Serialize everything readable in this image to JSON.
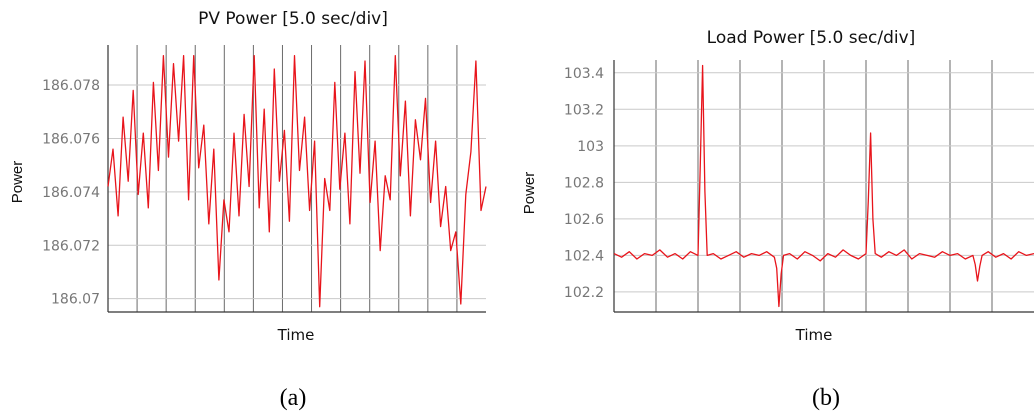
{
  "chart_data": [
    {
      "panel": "a",
      "type": "line",
      "title": "PV Power [5.0 sec/div]",
      "xlabel": "Time",
      "ylabel": "Power",
      "yticks": [
        "186.078",
        "186.076",
        "186.074",
        "186.072",
        "186.07"
      ],
      "ylim": [
        186.0695,
        186.0795
      ],
      "grid": true,
      "x": [
        0,
        0.8,
        1.6,
        2.4,
        3.2,
        4.0,
        4.8,
        5.6,
        6.4,
        7.2,
        8.0,
        8.8,
        9.6,
        10.4,
        11.2,
        12.0,
        12.8,
        13.6,
        14.4,
        15.2,
        16.0,
        16.8,
        17.6,
        18.4,
        19.2,
        20.0,
        20.8,
        21.6,
        22.4,
        23.2,
        24.0,
        24.8,
        25.6,
        26.4,
        27.2,
        28.0,
        28.8,
        29.6,
        30.4,
        31.2,
        32.0,
        32.8,
        33.6,
        34.4,
        35.2,
        36.0,
        36.8,
        37.6,
        38.4,
        39.2,
        40.0,
        40.8,
        41.6,
        42.4,
        43.2,
        44.0,
        44.8,
        45.6,
        46.4,
        47.2,
        48.0,
        48.8,
        49.6,
        50.4,
        51.2,
        52.0,
        52.8,
        53.6,
        54.4,
        55.2,
        56.0,
        56.8,
        57.6,
        58.4,
        59.2,
        60.0
      ],
      "series": [
        {
          "color": "#e8141b",
          "values": [
            186.0742,
            186.0756,
            186.0731,
            186.0768,
            186.0744,
            186.0778,
            186.0739,
            186.0762,
            186.0734,
            186.0781,
            186.0748,
            186.0791,
            186.0753,
            186.0788,
            186.0759,
            186.0791,
            186.0737,
            186.0791,
            186.0749,
            186.0765,
            186.0728,
            186.0756,
            186.0707,
            186.0737,
            186.0725,
            186.0762,
            186.0731,
            186.0769,
            186.0742,
            186.0791,
            186.0734,
            186.0771,
            186.0725,
            186.0786,
            186.0744,
            186.0763,
            186.0729,
            186.0791,
            186.0748,
            186.0768,
            186.0733,
            186.0759,
            186.0697,
            186.0745,
            186.0733,
            186.0781,
            186.0741,
            186.0762,
            186.0728,
            186.0785,
            186.0747,
            186.0789,
            186.0736,
            186.0759,
            186.0718,
            186.0746,
            186.0737,
            186.0791,
            186.0746,
            186.0774,
            186.0731,
            186.0767,
            186.0752,
            186.0775,
            186.0736,
            186.0759,
            186.0727,
            186.0742,
            186.0718,
            186.0725,
            186.0698,
            186.0739,
            186.0755,
            186.0789,
            186.0733,
            186.0742
          ]
        }
      ]
    },
    {
      "panel": "b",
      "type": "line",
      "title": "Load Power [5.0 sec/div]",
      "xlabel": "Time",
      "ylabel": "Power",
      "yticks": [
        "103.4",
        "103.2",
        "103",
        "102.8",
        "102.6",
        "102.4",
        "102.2"
      ],
      "ylim": [
        102.09,
        103.47
      ],
      "grid": true,
      "x": [
        0,
        1,
        2,
        3,
        4,
        5,
        6,
        7,
        8,
        9,
        10,
        11,
        11.3,
        11.6,
        11.9,
        12.2,
        13,
        14,
        15,
        16,
        17,
        18,
        19,
        20,
        21,
        21.3,
        21.6,
        21.9,
        22.2,
        23,
        24,
        25,
        26,
        27,
        28,
        29,
        30,
        31,
        32,
        33,
        33.3,
        33.6,
        33.9,
        34.2,
        35,
        36,
        37,
        38,
        39,
        40,
        41,
        42,
        43,
        44,
        45,
        46,
        47,
        47.3,
        47.6,
        47.9,
        48.2,
        49,
        50,
        51,
        52,
        53,
        54,
        55
      ],
      "series": [
        {
          "color": "#e8141b",
          "values": [
            102.41,
            102.39,
            102.42,
            102.38,
            102.41,
            102.4,
            102.43,
            102.39,
            102.41,
            102.38,
            102.42,
            102.4,
            102.9,
            103.44,
            102.75,
            102.4,
            102.41,
            102.38,
            102.4,
            102.42,
            102.39,
            102.41,
            102.4,
            102.42,
            102.39,
            102.33,
            102.12,
            102.3,
            102.4,
            102.41,
            102.38,
            102.42,
            102.4,
            102.37,
            102.41,
            102.39,
            102.43,
            102.4,
            102.38,
            102.41,
            102.7,
            103.07,
            102.6,
            102.41,
            102.39,
            102.42,
            102.4,
            102.43,
            102.38,
            102.41,
            102.4,
            102.39,
            102.42,
            102.4,
            102.41,
            102.38,
            102.4,
            102.35,
            102.26,
            102.34,
            102.4,
            102.42,
            102.39,
            102.41,
            102.38,
            102.42,
            102.4,
            102.41
          ]
        }
      ]
    }
  ],
  "captions": [
    "(a)",
    "(b)"
  ]
}
